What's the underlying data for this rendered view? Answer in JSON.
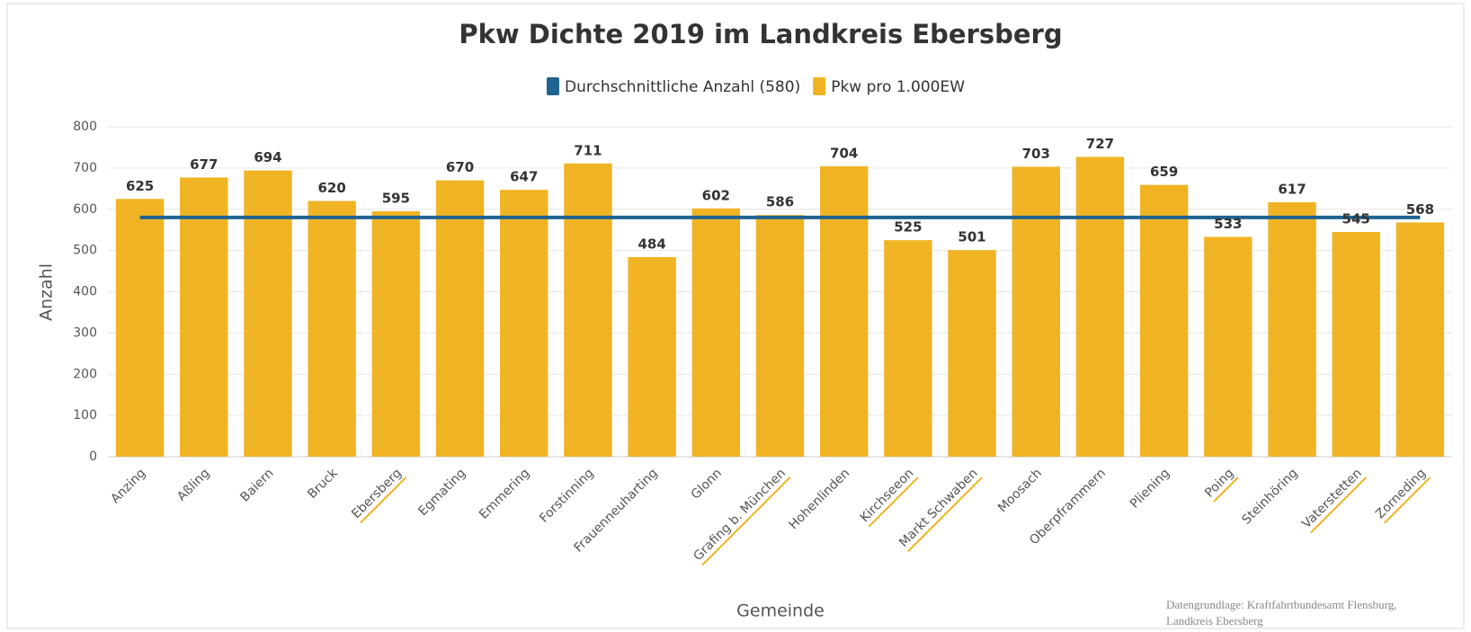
{
  "chart_data": {
    "type": "bar",
    "title": "Pkw Dichte 2019 im Landkreis Ebersberg",
    "x_label": "Gemeinde",
    "y_label": "Anzahl",
    "source": [
      "Datengrundlage: Kraftfahrtbundesamt Flensburg,",
      "Landkreis Ebersberg"
    ],
    "categories": [
      "Anzing",
      "Aßling",
      "Baiern",
      "Bruck",
      "Ebersberg",
      "Egmating",
      "Emmering",
      "Forstinning",
      "Frauenneuharting",
      "Glonn",
      "Grafing b. München",
      "Hohenlinden",
      "Kirchseeon",
      "Markt Schwaben",
      "Moosach",
      "Oberpframmern",
      "Pliening",
      "Poing",
      "Steinhöring",
      "Vaterstetten",
      "Zorneding"
    ],
    "underline": [
      false,
      false,
      false,
      false,
      true,
      false,
      false,
      false,
      false,
      false,
      true,
      false,
      true,
      true,
      false,
      false,
      false,
      true,
      false,
      true,
      true
    ],
    "underline_color": "#f0b323",
    "series": [
      {
        "name": "Durchschnittliche Anzahl (580)",
        "color": "#1f6391",
        "type": "line",
        "values": [
          580,
          580,
          580,
          580,
          580,
          580,
          580,
          580,
          580,
          580,
          580,
          580,
          580,
          580,
          580,
          580,
          580,
          580,
          580,
          580,
          580
        ]
      },
      {
        "name": "Pkw pro 1.000EW",
        "color": "#f0b323",
        "type": "bar",
        "values": [
          625,
          677,
          694,
          620,
          595,
          670,
          647,
          711,
          484,
          602,
          586,
          704,
          525,
          501,
          703,
          727,
          659,
          533,
          617,
          545,
          568
        ]
      }
    ],
    "ylim": [
      0,
      800
    ],
    "yticks": [
      0,
      100,
      200,
      300,
      400,
      500,
      600,
      700,
      800
    ],
    "grid": true,
    "legend": "top"
  }
}
